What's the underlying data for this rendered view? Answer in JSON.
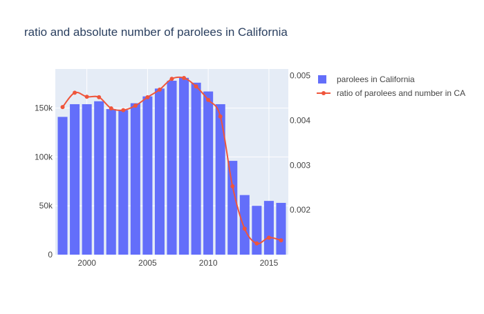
{
  "chart_data": {
    "title": "ratio and absolute number of parolees in California",
    "type": "bar+line",
    "x_ticks": [
      2000,
      2005,
      2010,
      2015
    ],
    "x_tick_labels": [
      "2000",
      "2005",
      "2010",
      "2015"
    ],
    "xlim": [
      1997.4,
      2016.6
    ],
    "y_left": {
      "range": [
        0,
        190000
      ],
      "ticks": [
        0,
        50000,
        100000,
        150000
      ],
      "tick_labels": [
        "0",
        "50k",
        "100k",
        "150k"
      ]
    },
    "y_right": {
      "range": [
        0.001,
        0.00515
      ],
      "ticks": [
        0.002,
        0.003,
        0.004,
        0.005
      ],
      "tick_labels": [
        "0.002",
        "0.003",
        "0.004",
        "0.005"
      ]
    },
    "grid": true,
    "legend_position": "right",
    "series": [
      {
        "name": "parolees in California",
        "kind": "bar",
        "axis": "left",
        "color": "#636efa",
        "x": [
          1998,
          1999,
          2000,
          2001,
          2002,
          2003,
          2004,
          2005,
          2006,
          2007,
          2008,
          2009,
          2010,
          2011,
          2012,
          2013,
          2014,
          2015,
          2016
        ],
        "values": [
          141000,
          154000,
          154000,
          157000,
          149000,
          148000,
          155000,
          162000,
          170000,
          178000,
          181000,
          176000,
          167000,
          154000,
          96000,
          61000,
          50000,
          55000,
          53000
        ]
      },
      {
        "name": "ratio of parolees and number in CA",
        "kind": "line",
        "axis": "right",
        "color": "#ef553b",
        "x": [
          1998,
          1999,
          2000,
          2001,
          2002,
          2003,
          2004,
          2005,
          2006,
          2007,
          2008,
          2009,
          2010,
          2011,
          2012,
          2013,
          2014,
          2015,
          2016
        ],
        "values": [
          0.0043,
          0.00462,
          0.00453,
          0.00452,
          0.00427,
          0.00423,
          0.00433,
          0.00452,
          0.00469,
          0.00493,
          0.00495,
          0.00476,
          0.00446,
          0.00409,
          0.00253,
          0.00158,
          0.00125,
          0.00138,
          0.00132
        ]
      }
    ]
  }
}
